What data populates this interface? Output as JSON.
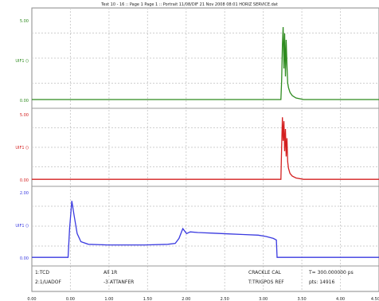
{
  "chart_data": {
    "type": "line",
    "title": "Test 10 - 16 :: Page 1 Page 1 :: Portrait 11/08/DIF 21 Nov 2008 08:01 HORIZ SERVICE.dat",
    "x_ticks": [
      "0.00",
      "0.00",
      "1.00",
      "1.50",
      "2.00",
      "2.50",
      "3.00",
      "3.50",
      "4.00",
      "4.50 ms"
    ],
    "x_range": [
      0,
      4.6
    ],
    "grid": true,
    "panels": [
      {
        "name": "",
        "color": "#2e8b1f",
        "y_ticks": [
          "5.00",
          "UIF1 ()",
          "0.00"
        ],
        "y_range": [
          0,
          5
        ],
        "series": [
          {
            "name": "",
            "x": [
              0,
              3.3,
              3.31,
              3.32,
              3.33,
              3.34,
              3.35,
              3.36,
              3.37,
              3.38,
              3.39,
              3.4,
              3.42,
              3.45,
              3.5,
              3.6,
              4.6
            ],
            "y": [
              0.05,
              0.05,
              1.2,
              3.5,
              4.6,
              2.0,
              4.2,
              1.5,
              3.8,
              2.2,
              1.1,
              0.8,
              0.5,
              0.3,
              0.15,
              0.05,
              0.05
            ]
          }
        ]
      },
      {
        "name": "",
        "color": "#d42020",
        "y_ticks": [
          "5.00",
          "UIF1 ()",
          "0.00"
        ],
        "y_range": [
          0,
          5
        ],
        "series": [
          {
            "name": "",
            "x": [
              0,
              3.3,
              3.31,
              3.32,
              3.33,
              3.34,
              3.35,
              3.36,
              3.37,
              3.38,
              3.39,
              3.4,
              3.42,
              3.45,
              3.5,
              3.6,
              4.6
            ],
            "y": [
              0.05,
              0.05,
              2.5,
              4.8,
              3.0,
              4.5,
              2.2,
              3.9,
              1.8,
              3.2,
              1.4,
              0.9,
              0.5,
              0.3,
              0.15,
              0.05,
              0.05
            ]
          }
        ]
      },
      {
        "name": "",
        "color": "#3a3ae0",
        "y_ticks": [
          "2.00",
          "UIF1 ()",
          "0.00"
        ],
        "y_range": [
          0,
          2
        ],
        "series": [
          {
            "name": "",
            "x": [
              0,
              0.48,
              0.5,
              0.53,
              0.56,
              0.6,
              0.65,
              0.75,
              1.0,
              1.5,
              1.8,
              1.9,
              1.95,
              2.0,
              2.05,
              2.1,
              2.2,
              2.4,
              2.6,
              2.8,
              3.0,
              3.1,
              3.2,
              3.24,
              3.25,
              4.6
            ],
            "y": [
              0.02,
              0.02,
              0.9,
              1.75,
              1.3,
              0.75,
              0.5,
              0.42,
              0.4,
              0.4,
              0.42,
              0.45,
              0.6,
              0.9,
              0.75,
              0.8,
              0.78,
              0.76,
              0.74,
              0.72,
              0.7,
              0.66,
              0.6,
              0.55,
              0.02,
              0.02
            ]
          }
        ]
      }
    ],
    "annotations": {
      "row1": [
        "1:TCD",
        "All 1R",
        "CRACKLE CAL",
        "T= 300.000000 ps"
      ],
      "row2": [
        "2:1/UADOF",
        "-3 ATTANFER",
        "T:TRIGPOS REF",
        "pts: 14916"
      ]
    }
  }
}
